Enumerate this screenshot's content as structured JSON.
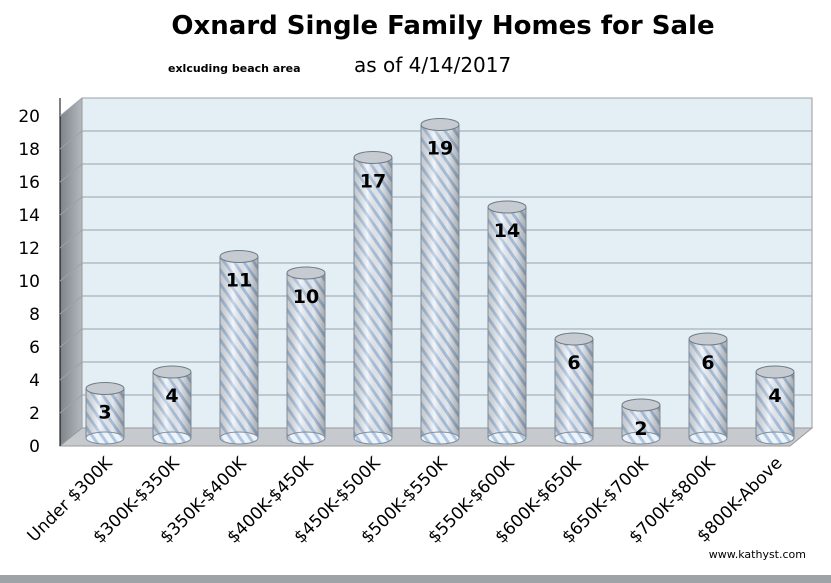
{
  "chart_data": {
    "type": "bar",
    "title": "Oxnard Single Family Homes for Sale",
    "subtitle": "as of 4/14/2017",
    "note": "exlcuding beach area",
    "credit": "www.kathyst.com",
    "categories": [
      "Under $300K",
      "$300K-$350K",
      "$350K-$400K",
      "$400K-$450K",
      "$450K-$500K",
      "$500K-$550K",
      "$550K-$600K",
      "$600K-$650K",
      "$650K-$700K",
      "$700K-$800K",
      "$800K-Above"
    ],
    "values": [
      3,
      4,
      11,
      10,
      17,
      19,
      14,
      6,
      2,
      6,
      4
    ],
    "value_labels": [
      "3",
      "4",
      "11",
      "10",
      "17",
      "19",
      "14",
      "6",
      "2",
      "6",
      "4"
    ],
    "ylim": [
      0,
      20
    ],
    "yticks": [
      "0",
      "2",
      "4",
      "6",
      "8",
      "10",
      "12",
      "14",
      "16",
      "18",
      "20"
    ],
    "grid": true,
    "legend": "none",
    "colors": {
      "bar_fill": "#e8eef6",
      "bar_stripe": "#a9c3e0",
      "wall": "#e3eef5",
      "side_wall": "#9aa0a6",
      "floor": "#c8ccd0"
    }
  }
}
